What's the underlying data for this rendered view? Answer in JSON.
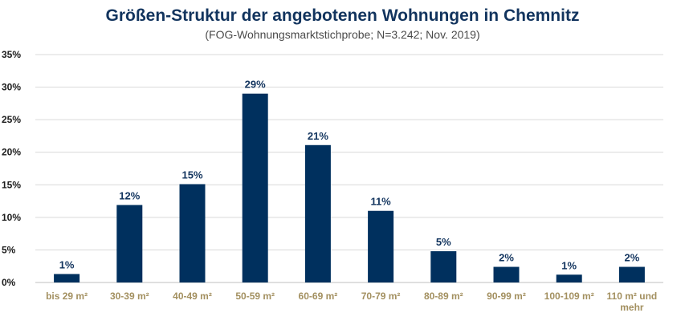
{
  "chart_data": {
    "type": "bar",
    "title": "Größen-Struktur der angebotenen Wohnungen in Chemnitz",
    "subtitle": "(FOG-Wohnungsmarktstichprobe; N=3.242; Nov. 2019)",
    "categories": [
      [
        "bis 29 m²"
      ],
      [
        "30-39 m²"
      ],
      [
        "40-49 m²"
      ],
      [
        "50-59 m²"
      ],
      [
        "60-69 m²"
      ],
      [
        "70-79 m²"
      ],
      [
        "80-89 m²"
      ],
      [
        "90-99 m²"
      ],
      [
        "100-109 m²"
      ],
      [
        "110 m² und",
        "mehr"
      ]
    ],
    "values": [
      1.3,
      11.9,
      15.1,
      29.0,
      21.1,
      11.0,
      4.8,
      2.4,
      1.2,
      2.4
    ],
    "data_labels": [
      "1%",
      "12%",
      "15%",
      "29%",
      "21%",
      "11%",
      "5%",
      "2%",
      "1%",
      "2%"
    ],
    "ylim": [
      0,
      35
    ],
    "yticks": [
      "0%",
      "5%",
      "10%",
      "15%",
      "20%",
      "25%",
      "30%",
      "35%"
    ],
    "ytick_values": [
      0,
      5,
      10,
      15,
      20,
      25,
      30,
      35
    ],
    "xlabel": "",
    "ylabel": "",
    "grid": true,
    "legend": "none",
    "colors": {
      "bar": "#00305e",
      "xtick": "#a39060",
      "title": "#12345e"
    }
  }
}
